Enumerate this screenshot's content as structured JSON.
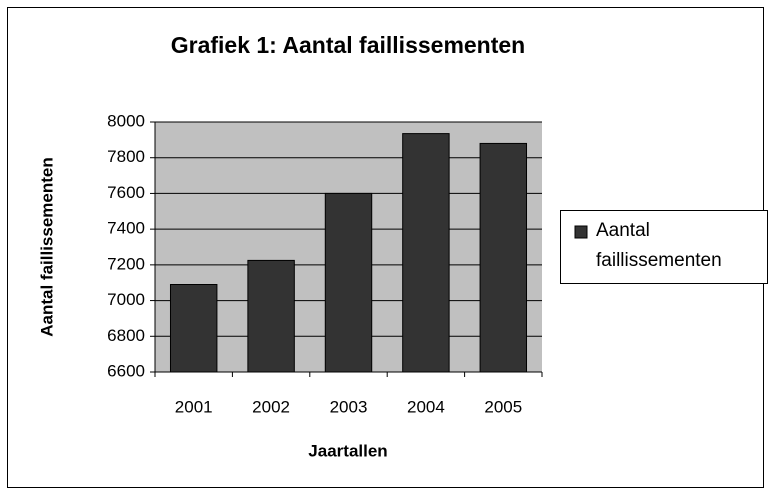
{
  "chart_data": {
    "type": "bar",
    "title": "Grafiek 1: Aantal faillissementen",
    "x_label": "Jaartallen",
    "y_label": "Aantal faillissementen",
    "categories": [
      "2001",
      "2002",
      "2003",
      "2004",
      "2005"
    ],
    "series": [
      {
        "name": "Aantal faillissementen",
        "color": "#333333",
        "values": [
          7090,
          7225,
          7600,
          7935,
          7880
        ]
      }
    ],
    "ylim": [
      6600,
      8000
    ],
    "yticks": [
      6600,
      6800,
      7000,
      7200,
      7400,
      7600,
      7800,
      8000
    ],
    "grid": true,
    "legend": "right"
  }
}
